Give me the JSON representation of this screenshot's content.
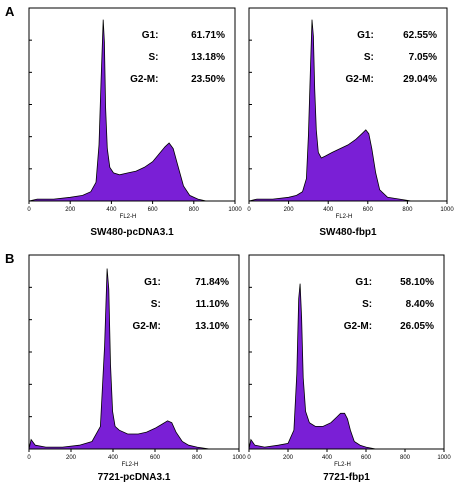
{
  "panel_labels": [
    "A",
    "B"
  ],
  "chart_data": [
    {
      "type": "area",
      "title": "SW480-pcDNA3.1",
      "xlabel": "FL2-H",
      "xlim": [
        0,
        1000
      ],
      "ylim": [
        0,
        100
      ],
      "x_ticks": [
        "0",
        "200",
        "400",
        "600",
        "800",
        "1000"
      ],
      "phases": [
        {
          "name": "G1:",
          "value": "61.71%"
        },
        {
          "name": "S:",
          "value": "13.18%"
        },
        {
          "name": "G2-M:",
          "value": "23.50%"
        }
      ],
      "x": [
        0,
        40,
        120,
        200,
        260,
        300,
        325,
        340,
        350,
        360,
        366,
        372,
        380,
        392,
        410,
        440,
        480,
        520,
        560,
        600,
        630,
        660,
        680,
        700,
        720,
        750,
        780,
        820,
        860,
        900,
        1000
      ],
      "values": [
        0,
        1,
        1,
        2,
        3,
        5,
        10,
        30,
        65,
        97,
        85,
        50,
        28,
        18,
        15,
        14,
        15,
        16,
        18,
        21,
        25,
        29,
        31,
        28,
        20,
        8,
        3,
        1,
        0,
        0,
        0
      ],
      "color": "#7a1fd6"
    },
    {
      "type": "area",
      "title": "SW480-fbp1",
      "xlabel": "FL2-H",
      "xlim": [
        0,
        1000
      ],
      "ylim": [
        0,
        100
      ],
      "x_ticks": [
        "0",
        "200",
        "400",
        "600",
        "800",
        "1000"
      ],
      "phases": [
        {
          "name": "G1:",
          "value": "62.55%"
        },
        {
          "name": "S:",
          "value": "7.05%"
        },
        {
          "name": "G2-M:",
          "value": "29.04%"
        }
      ],
      "x": [
        0,
        40,
        120,
        200,
        240,
        270,
        290,
        300,
        310,
        318,
        325,
        332,
        340,
        350,
        365,
        385,
        420,
        460,
        500,
        540,
        570,
        590,
        605,
        620,
        640,
        660,
        700,
        760,
        820,
        900,
        1000
      ],
      "values": [
        0,
        1,
        1,
        2,
        3,
        5,
        12,
        35,
        70,
        97,
        88,
        60,
        38,
        26,
        23,
        24,
        26,
        28,
        30,
        33,
        36,
        38,
        36,
        28,
        15,
        6,
        2,
        1,
        0,
        0,
        0
      ],
      "color": "#7a1fd6"
    },
    {
      "type": "area",
      "title": "7721-pcDNA3.1",
      "xlabel": "FL2-H",
      "xlim": [
        0,
        1000
      ],
      "ylim": [
        0,
        100
      ],
      "x_ticks": [
        "0",
        "200",
        "400",
        "600",
        "800",
        "1000"
      ],
      "phases": [
        {
          "name": "G1:",
          "value": "71.84%"
        },
        {
          "name": "S:",
          "value": "11.10%"
        },
        {
          "name": "G2-M:",
          "value": "13.10%"
        }
      ],
      "x": [
        0,
        10,
        30,
        80,
        160,
        240,
        300,
        340,
        360,
        372,
        380,
        388,
        398,
        410,
        430,
        470,
        520,
        560,
        600,
        630,
        660,
        680,
        700,
        730,
        760,
        800,
        860,
        920,
        1000
      ],
      "values": [
        0,
        5,
        2,
        1,
        1,
        2,
        4,
        12,
        55,
        96,
        85,
        45,
        20,
        12,
        10,
        8,
        8,
        9,
        11,
        13,
        15,
        14,
        9,
        4,
        2,
        1,
        0,
        0,
        0
      ],
      "color": "#7a1fd6"
    },
    {
      "type": "area",
      "title": "7721-fbp1",
      "xlabel": "FL2-H",
      "xlim": [
        0,
        1000
      ],
      "ylim": [
        0,
        100
      ],
      "x_ticks": [
        "0",
        "200",
        "400",
        "600",
        "800",
        "1000"
      ],
      "phases": [
        {
          "name": "G1:",
          "value": "58.10%"
        },
        {
          "name": "S:",
          "value": "8.40%"
        },
        {
          "name": "G2-M:",
          "value": "26.05%"
        }
      ],
      "x": [
        0,
        10,
        30,
        80,
        150,
        200,
        230,
        245,
        255,
        262,
        270,
        278,
        290,
        310,
        340,
        380,
        420,
        450,
        470,
        490,
        505,
        520,
        540,
        570,
        600,
        650,
        720,
        800,
        1000
      ],
      "values": [
        0,
        5,
        2,
        1,
        2,
        3,
        10,
        40,
        80,
        88,
        70,
        38,
        20,
        14,
        12,
        12,
        14,
        17,
        19,
        19,
        16,
        10,
        4,
        2,
        1,
        0,
        0,
        0,
        0
      ],
      "color": "#7a1fd6"
    }
  ]
}
